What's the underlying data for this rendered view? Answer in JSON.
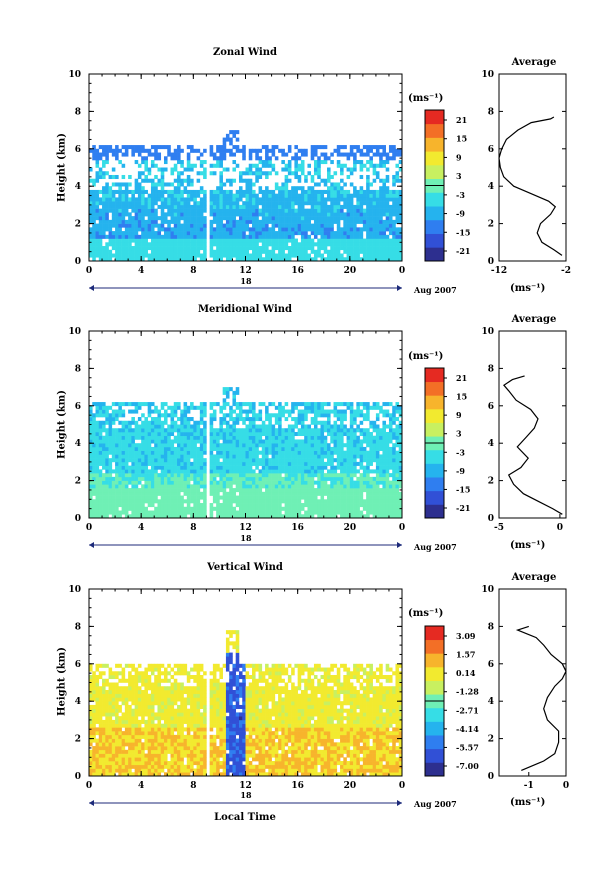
{
  "figure": {
    "xlabel_bottom": "Local Time",
    "date_label": "Aug 2007",
    "day_label": "18",
    "ylabel": "Height (km)",
    "unit_label": "(ms⁻¹)",
    "profile_title": "Average"
  },
  "chart_data": [
    {
      "id": "zonal",
      "type": "heatmap",
      "title": "Zonal Wind",
      "ylabel": "Height (km)",
      "xlim": [
        0,
        24
      ],
      "ylim": [
        0,
        10
      ],
      "xticks": [
        "0",
        "4",
        "8",
        "12",
        "16",
        "20",
        "0"
      ],
      "yticks": [
        "0",
        "2",
        "4",
        "6",
        "8",
        "10"
      ],
      "colorbar_ticks": [
        "21",
        "15",
        "9",
        "3",
        "-3",
        "-9",
        "-15",
        "-21"
      ],
      "colorbar_range": [
        -24,
        24
      ],
      "colormap": [
        "#2d2f8f",
        "#3150d6",
        "#2f7ef0",
        "#25b3ee",
        "#36dde6",
        "#6ff0b5",
        "#c8f060",
        "#f2ea2f",
        "#f7b42c",
        "#f36f26",
        "#e52a22"
      ],
      "profile": {
        "title": "Average",
        "xlabel": "(ms⁻¹)",
        "xticks": [
          "-12",
          "-2"
        ],
        "xlim": [
          -12,
          -2
        ],
        "height_km": [
          0.3,
          0.6,
          1.0,
          1.5,
          2.0,
          2.5,
          2.9,
          3.2,
          3.6,
          4.0,
          4.5,
          5.0,
          5.5,
          6.0,
          6.5,
          7.0,
          7.4,
          7.6,
          7.7
        ],
        "value": [
          -2.6,
          -3.8,
          -5.6,
          -6.3,
          -5.8,
          -4.3,
          -3.6,
          -4.6,
          -7.2,
          -9.8,
          -11.3,
          -11.8,
          -12.0,
          -11.6,
          -10.9,
          -9.2,
          -7.2,
          -4.3,
          -3.8
        ]
      }
    },
    {
      "id": "meridional",
      "type": "heatmap",
      "title": "Meridional Wind",
      "ylabel": "Height (km)",
      "xlim": [
        0,
        24
      ],
      "ylim": [
        0,
        10
      ],
      "xticks": [
        "0",
        "4",
        "8",
        "12",
        "16",
        "20",
        "0"
      ],
      "yticks": [
        "0",
        "2",
        "4",
        "6",
        "8",
        "10"
      ],
      "colorbar_ticks": [
        "21",
        "15",
        "9",
        "3",
        "-3",
        "-9",
        "-15",
        "-21"
      ],
      "colorbar_range": [
        -24,
        24
      ],
      "colormap": [
        "#2d2f8f",
        "#3150d6",
        "#2f7ef0",
        "#25b3ee",
        "#36dde6",
        "#6ff0b5",
        "#c8f060",
        "#f2ea2f",
        "#f7b42c",
        "#f36f26",
        "#e52a22"
      ],
      "profile": {
        "title": "Average",
        "xlabel": "(ms⁻¹)",
        "xticks": [
          "-5",
          "0"
        ],
        "xlim": [
          -5,
          0.5
        ],
        "height_km": [
          0.2,
          0.5,
          0.9,
          1.3,
          1.8,
          2.3,
          2.7,
          3.2,
          3.8,
          4.3,
          4.8,
          5.3,
          5.8,
          6.3,
          6.8,
          7.1,
          7.4,
          7.6
        ],
        "value": [
          0.2,
          -0.6,
          -1.8,
          -3.0,
          -3.8,
          -4.2,
          -3.2,
          -2.6,
          -3.5,
          -2.8,
          -2.1,
          -1.8,
          -2.4,
          -3.6,
          -4.2,
          -4.6,
          -3.9,
          -2.9
        ]
      }
    },
    {
      "id": "vertical",
      "type": "heatmap",
      "title": "Vertical Wind",
      "ylabel": "Height (km)",
      "xlabel": "Local Time",
      "xlim": [
        0,
        24
      ],
      "ylim": [
        0,
        10
      ],
      "xticks": [
        "0",
        "4",
        "8",
        "12",
        "16",
        "20",
        "0"
      ],
      "yticks": [
        "0",
        "2",
        "4",
        "6",
        "8",
        "10"
      ],
      "colorbar_ticks": [
        "3.09",
        "1.57",
        "0.14",
        "-1.28",
        "-2.71",
        "-4.14",
        "-5.57",
        "-7.00"
      ],
      "colorbar_range": [
        -7.5,
        3.6
      ],
      "colormap": [
        "#2d2f8f",
        "#3150d6",
        "#2f7ef0",
        "#25b3ee",
        "#36dde6",
        "#6ff0b5",
        "#c8f060",
        "#f2ea2f",
        "#f7b42c",
        "#f36f26",
        "#e52a22"
      ],
      "profile": {
        "title": "Average",
        "xlabel": "(ms⁻¹)",
        "xticks": [
          "-1",
          "0"
        ],
        "xlim": [
          -1.8,
          0
        ],
        "height_km": [
          0.3,
          0.8,
          1.2,
          1.8,
          2.4,
          3.0,
          3.6,
          4.2,
          4.8,
          5.2,
          5.6,
          6.0,
          6.5,
          7.0,
          7.4,
          7.8,
          8.0
        ],
        "value": [
          -1.2,
          -0.6,
          -0.3,
          -0.2,
          -0.2,
          -0.5,
          -0.6,
          -0.5,
          -0.3,
          -0.1,
          0.0,
          -0.1,
          -0.4,
          -0.6,
          -0.8,
          -1.3,
          -1.0
        ]
      }
    }
  ]
}
